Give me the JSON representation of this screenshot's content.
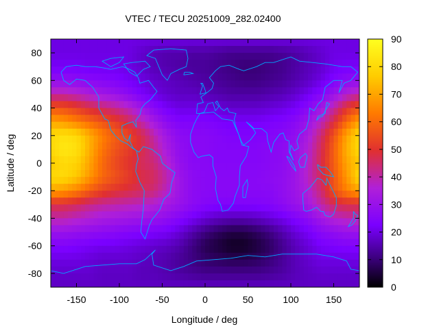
{
  "chart_data": {
    "type": "heatmap",
    "title": "VTEC / TECU 20251009_282.02400",
    "xlabel": "Longitude / deg",
    "ylabel": "Latitude / deg",
    "xlim": [
      -180,
      180
    ],
    "ylim": [
      -90,
      90
    ],
    "xticks": [
      -150,
      -100,
      -50,
      0,
      50,
      100,
      150
    ],
    "yticks": [
      -80,
      -60,
      -40,
      -20,
      0,
      20,
      40,
      60,
      80
    ],
    "colorbar": {
      "range": [
        0,
        90
      ],
      "ticks": [
        0,
        10,
        20,
        30,
        40,
        50,
        60,
        70,
        80,
        90
      ],
      "palette": [
        "#000000",
        "#3d0080",
        "#7a00ff",
        "#b020d8",
        "#e03030",
        "#ff7a00",
        "#ffcc00",
        "#ffff20"
      ]
    },
    "coastline_color": "#00aaff",
    "grid": false,
    "vtec_grid": {
      "longitudes": [
        -180,
        -165,
        -150,
        -135,
        -120,
        -105,
        -90,
        -75,
        -60,
        -45,
        -30,
        -15,
        0,
        15,
        30,
        45,
        60,
        75,
        90,
        105,
        120,
        135,
        150,
        165,
        180
      ],
      "latitudes": [
        90,
        80,
        70,
        60,
        50,
        40,
        30,
        20,
        10,
        0,
        -10,
        -20,
        -30,
        -40,
        -50,
        -60,
        -70,
        -80,
        -90
      ],
      "values": [
        [
          20,
          20,
          20,
          20,
          20,
          20,
          20,
          20,
          20,
          20,
          20,
          20,
          20,
          20,
          20,
          20,
          20,
          20,
          20,
          20,
          20,
          20,
          20,
          20,
          20
        ],
        [
          20,
          20,
          20,
          20,
          20,
          20,
          20,
          18,
          16,
          15,
          15,
          14,
          14,
          13,
          12,
          12,
          12,
          12,
          13,
          14,
          16,
          18,
          20,
          20,
          20
        ],
        [
          22,
          22,
          22,
          21,
          21,
          21,
          20,
          18,
          16,
          15,
          14,
          13,
          13,
          12,
          11,
          10,
          10,
          11,
          12,
          14,
          16,
          18,
          21,
          22,
          22
        ],
        [
          28,
          28,
          27,
          26,
          25,
          24,
          22,
          20,
          18,
          17,
          16,
          15,
          14,
          13,
          12,
          11,
          11,
          12,
          13,
          15,
          17,
          20,
          24,
          27,
          28
        ],
        [
          40,
          40,
          38,
          35,
          32,
          30,
          27,
          23,
          20,
          18,
          17,
          17,
          16,
          15,
          14,
          14,
          14,
          15,
          16,
          18,
          21,
          25,
          30,
          36,
          40
        ],
        [
          56,
          55,
          52,
          48,
          45,
          42,
          38,
          32,
          26,
          22,
          20,
          20,
          20,
          19,
          18,
          18,
          18,
          19,
          20,
          22,
          26,
          32,
          40,
          50,
          56
        ],
        [
          70,
          68,
          64,
          60,
          56,
          52,
          47,
          40,
          33,
          27,
          24,
          24,
          24,
          23,
          22,
          22,
          22,
          23,
          24,
          26,
          31,
          38,
          48,
          60,
          70
        ],
        [
          80,
          82,
          80,
          72,
          64,
          58,
          54,
          48,
          40,
          32,
          27,
          26,
          26,
          25,
          24,
          24,
          24,
          25,
          26,
          28,
          34,
          44,
          56,
          70,
          80
        ],
        [
          80,
          84,
          82,
          72,
          62,
          56,
          52,
          48,
          42,
          34,
          28,
          26,
          26,
          25,
          25,
          25,
          25,
          26,
          27,
          30,
          36,
          46,
          58,
          72,
          80
        ],
        [
          76,
          80,
          78,
          70,
          60,
          54,
          50,
          46,
          44,
          37,
          29,
          26,
          26,
          25,
          25,
          25,
          25,
          26,
          27,
          30,
          37,
          47,
          58,
          70,
          76
        ],
        [
          80,
          80,
          76,
          68,
          60,
          56,
          52,
          48,
          46,
          40,
          31,
          27,
          26,
          26,
          26,
          26,
          26,
          27,
          28,
          31,
          38,
          46,
          56,
          68,
          80
        ],
        [
          70,
          68,
          64,
          58,
          53,
          50,
          48,
          46,
          44,
          38,
          31,
          27,
          26,
          26,
          26,
          26,
          26,
          26,
          28,
          31,
          36,
          44,
          56,
          64,
          70
        ],
        [
          48,
          48,
          46,
          43,
          41,
          40,
          39,
          38,
          36,
          33,
          30,
          27,
          25,
          24,
          24,
          24,
          24,
          25,
          27,
          30,
          33,
          40,
          46,
          48,
          48
        ],
        [
          40,
          40,
          38,
          36,
          34,
          33,
          32,
          31,
          30,
          28,
          25,
          22,
          19,
          17,
          16,
          16,
          17,
          19,
          21,
          24,
          27,
          32,
          37,
          39,
          40
        ],
        [
          30,
          30,
          29,
          28,
          27,
          26,
          25,
          24,
          23,
          22,
          19,
          15,
          11,
          8,
          6,
          6,
          8,
          11,
          15,
          19,
          22,
          26,
          28,
          30,
          30
        ],
        [
          24,
          24,
          23,
          22,
          21,
          21,
          20,
          19,
          18,
          17,
          15,
          11,
          7,
          5,
          3,
          3,
          5,
          8,
          12,
          16,
          19,
          22,
          23,
          24,
          24
        ],
        [
          20,
          20,
          20,
          19,
          18,
          18,
          18,
          17,
          16,
          15,
          13,
          11,
          9,
          8,
          7,
          7,
          8,
          10,
          13,
          16,
          18,
          20,
          20,
          20,
          20
        ],
        [
          18,
          18,
          18,
          18,
          17,
          17,
          17,
          16,
          16,
          15,
          14,
          13,
          12,
          12,
          12,
          12,
          12,
          13,
          14,
          16,
          17,
          18,
          18,
          18,
          18
        ],
        [
          17,
          17,
          17,
          17,
          17,
          17,
          17,
          17,
          17,
          17,
          17,
          17,
          17,
          17,
          17,
          17,
          17,
          17,
          17,
          17,
          17,
          17,
          17,
          17,
          17
        ]
      ]
    }
  }
}
